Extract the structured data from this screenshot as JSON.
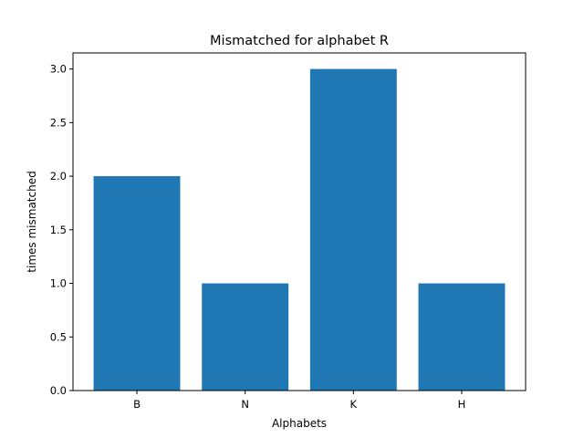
{
  "chart_data": {
    "type": "bar",
    "title": "Mismatched for alphabet R",
    "xlabel": "Alphabets",
    "ylabel": "times mismatched",
    "categories": [
      "B",
      "N",
      "K",
      "H"
    ],
    "values": [
      2,
      1,
      3,
      1
    ],
    "ylim": [
      0,
      3.15
    ],
    "yticks": [
      0.0,
      0.5,
      1.0,
      1.5,
      2.0,
      2.5,
      3.0
    ],
    "ytick_labels": [
      "0.0",
      "0.5",
      "1.0",
      "1.5",
      "2.0",
      "2.5",
      "3.0"
    ],
    "grid": false,
    "legend": "none",
    "bar_color": "#1f77b4"
  }
}
